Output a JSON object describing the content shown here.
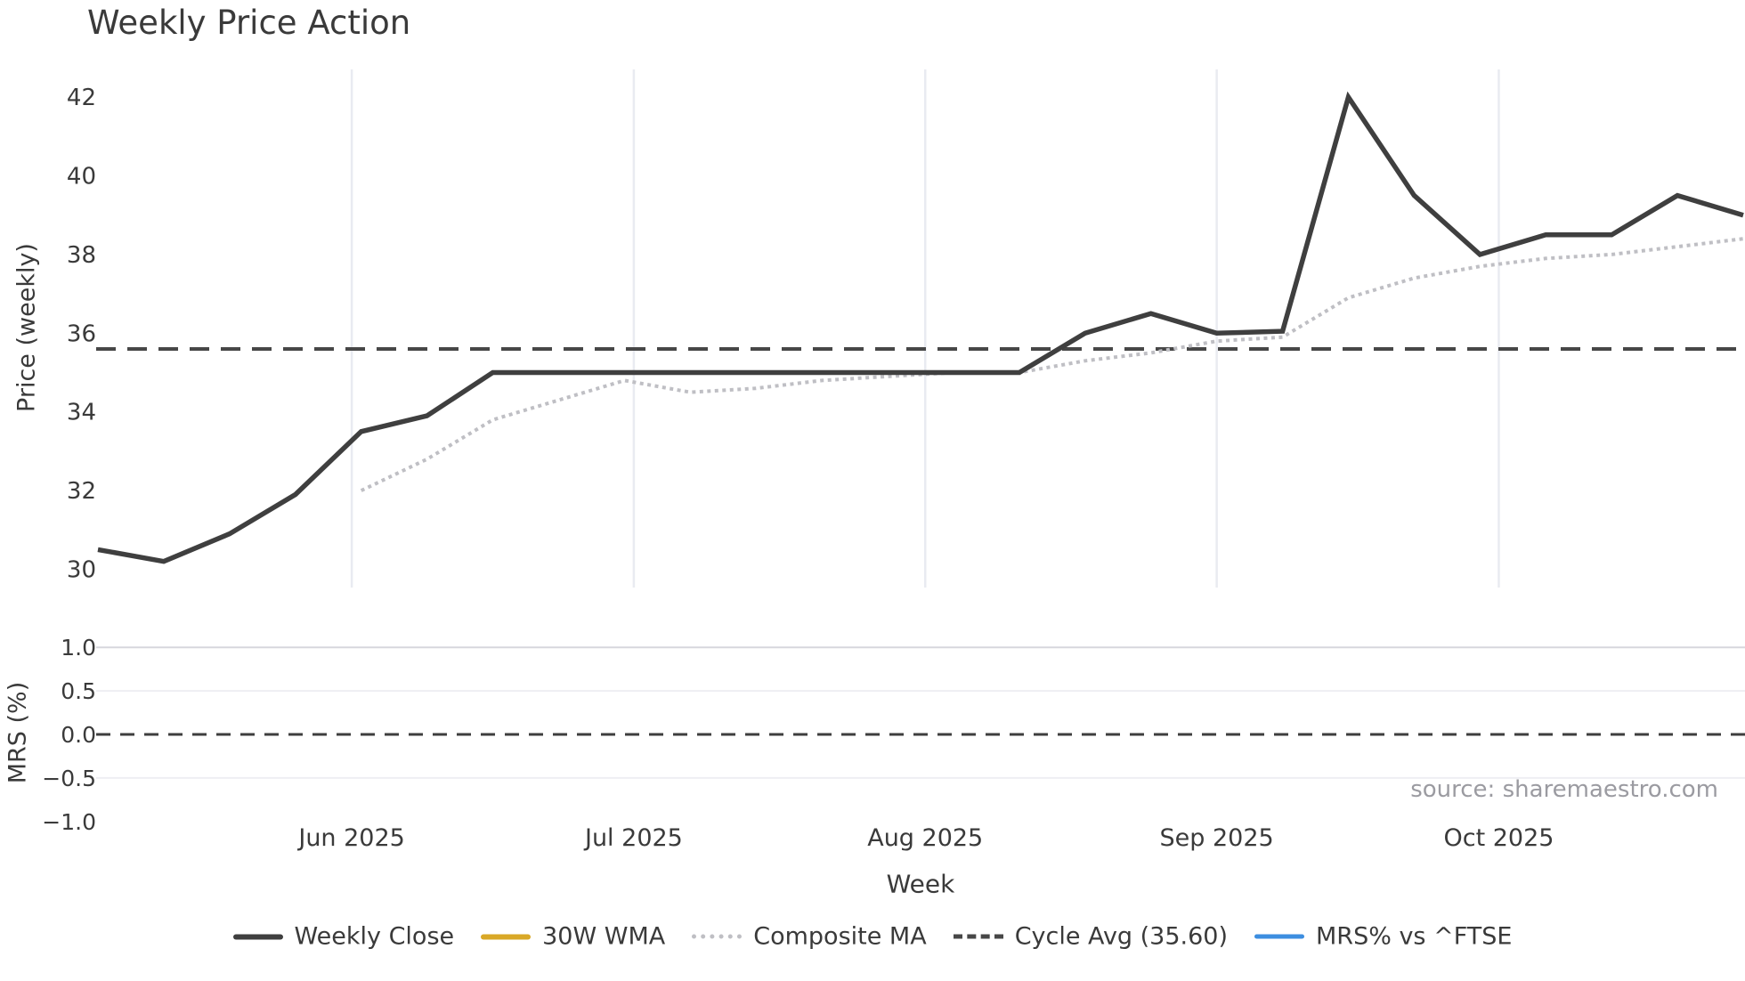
{
  "title": "Weekly Price Action",
  "source_note": "source: sharemaestro.com",
  "colors": {
    "weekly_close": "#3f3f3f",
    "wma_30w": "#d9a827",
    "composite_ma": "#bfbfc4",
    "cycle_avg": "#474747",
    "mrs_line": "#3d8ee0",
    "month_gridline": "#e9ebf1",
    "mrs_gridline_major": "#d7d7dd",
    "mrs_gridline_minor": "#eeeef3",
    "tick_text": "#3a3a3a",
    "source_text": "#9b9ba1"
  },
  "chart_data": {
    "type": "line",
    "title": "Weekly Price Action",
    "xlabel": "Week",
    "x_unit": "week_index",
    "x": [
      0,
      1,
      2,
      3,
      4,
      5,
      6,
      7,
      8,
      9,
      10,
      11,
      12,
      13,
      14,
      15,
      16,
      17,
      18,
      19,
      20,
      21,
      22,
      23,
      24,
      25
    ],
    "month_ticks": [
      {
        "label": "Jun 2025",
        "week_frac": 3.857
      },
      {
        "label": "Jul 2025",
        "week_frac": 8.143
      },
      {
        "label": "Aug 2025",
        "week_frac": 12.571
      },
      {
        "label": "Sep 2025",
        "week_frac": 17.0
      },
      {
        "label": "Oct 2025",
        "week_frac": 21.286
      }
    ],
    "panels": [
      {
        "name": "price",
        "ylabel": "Price (weekly)",
        "ylim": [
          29.1,
          42.8
        ],
        "yticks": [
          {
            "v": 30,
            "label": "30"
          },
          {
            "v": 32,
            "label": "32"
          },
          {
            "v": 34,
            "label": "34"
          },
          {
            "v": 36,
            "label": "36"
          },
          {
            "v": 38,
            "label": "38"
          },
          {
            "v": 40,
            "label": "40"
          },
          {
            "v": 42,
            "label": "42"
          }
        ],
        "grid": "vertical-months"
      },
      {
        "name": "mrs",
        "ylabel": "MRS (%)",
        "ylim": [
          -1.35,
          1.35
        ],
        "yticks": [
          {
            "v": 1.0,
            "label": "1.0",
            "grid": true,
            "grid_weight": "major"
          },
          {
            "v": 0.5,
            "label": "0.5",
            "grid": true,
            "grid_weight": "minor"
          },
          {
            "v": 0.0,
            "label": "0.0",
            "grid": false,
            "grid_weight": "dashed-zero"
          },
          {
            "v": -0.5,
            "label": "−0.5",
            "grid": true,
            "grid_weight": "minor"
          },
          {
            "v": -1.0,
            "label": "−1.0",
            "grid": false,
            "grid_weight": "none"
          }
        ],
        "zero_line_dashed": true
      }
    ],
    "series": [
      {
        "name": "Weekly Close",
        "panel": "price",
        "style": "solid",
        "color": "#3f3f3f",
        "start_index": 0,
        "values": [
          30.5,
          30.2,
          30.9,
          31.9,
          33.5,
          33.9,
          35.0,
          35.0,
          35.0,
          35.0,
          35.0,
          35.0,
          35.0,
          35.0,
          35.0,
          36.0,
          36.5,
          36.0,
          36.05,
          42.0,
          39.5,
          38.0,
          38.5,
          38.5,
          39.5,
          39.0
        ]
      },
      {
        "name": "30W WMA",
        "panel": "price",
        "style": "solid",
        "color": "#d9a827",
        "start_index": 0,
        "values": []
      },
      {
        "name": "Composite MA",
        "panel": "price",
        "style": "dotted",
        "color": "#bfbfc4",
        "start_index": 4,
        "values": [
          32.0,
          32.8,
          33.8,
          34.3,
          34.8,
          34.5,
          34.6,
          34.8,
          34.9,
          35.0,
          35.0,
          35.3,
          35.5,
          35.8,
          35.9,
          36.9,
          37.4,
          37.7,
          37.9,
          38.0,
          38.2,
          38.4
        ]
      },
      {
        "name": "Cycle Avg (35.60)",
        "panel": "price",
        "style": "dashed",
        "color": "#474747",
        "constant": 35.6
      },
      {
        "name": "MRS% vs ^FTSE",
        "panel": "mrs",
        "style": "solid",
        "color": "#3d8ee0",
        "start_index": 0,
        "values": []
      }
    ]
  },
  "legend": {
    "items": [
      {
        "label": "Weekly Close"
      },
      {
        "label": "30W WMA"
      },
      {
        "label": "Composite MA"
      },
      {
        "label": "Cycle Avg (35.60)"
      },
      {
        "label": "MRS% vs ^FTSE"
      }
    ]
  }
}
